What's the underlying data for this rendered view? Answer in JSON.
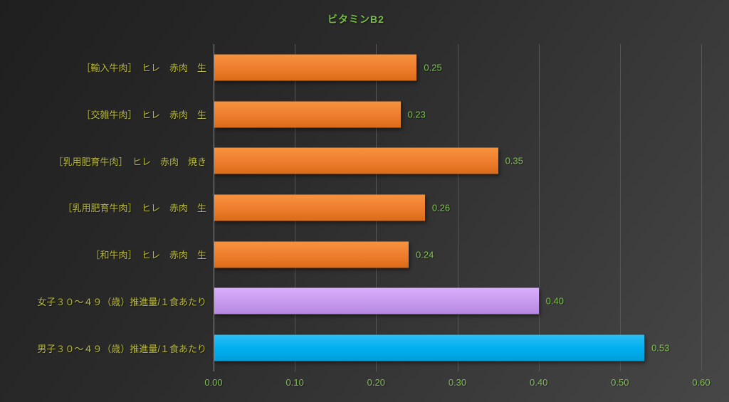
{
  "colors": {
    "background_dark": "#1f1f1f",
    "background_light": "#474747",
    "title_green": "#76bd45",
    "value_label_green": "#7ec24f",
    "category_label_olive": "#b9b93b",
    "axis_line_gray": "#8c8c8c",
    "gridline_gray": "#565656",
    "bar_orange": "#ee7d2d",
    "bar_purple": "#c89aef",
    "bar_blue": "#00b0f0"
  },
  "chart_data": {
    "type": "bar",
    "orientation": "horizontal",
    "title": "ビタミンB2",
    "categories": [
      "［輸入牛肉］　ヒレ　赤肉　生",
      "［交雑牛肉］　ヒレ　赤肉　生",
      "［乳用肥育牛肉］　ヒレ　赤肉　焼き",
      "［乳用肥育牛肉］　ヒレ　赤肉　生",
      "［和牛肉］　ヒレ　赤肉　生",
      "女子３０～４９（歳）推進量/１食あたり",
      "男子３０～４９（歳）推進量/１食あたり"
    ],
    "values": [
      0.25,
      0.23,
      0.35,
      0.26,
      0.24,
      0.4,
      0.53
    ],
    "value_labels": [
      "0.25",
      "0.23",
      "0.35",
      "0.26",
      "0.24",
      "0.40",
      "0.53"
    ],
    "bar_colors": [
      {
        "top": "#f7933f",
        "mid": "#ee7d2d",
        "bottom": "#db6b18"
      },
      {
        "top": "#f7933f",
        "mid": "#ee7d2d",
        "bottom": "#db6b18"
      },
      {
        "top": "#f7933f",
        "mid": "#ee7d2d",
        "bottom": "#db6b18"
      },
      {
        "top": "#f7933f",
        "mid": "#ee7d2d",
        "bottom": "#db6b18"
      },
      {
        "top": "#f7933f",
        "mid": "#ee7d2d",
        "bottom": "#db6b18"
      },
      {
        "top": "#d9aefb",
        "mid": "#c89aef",
        "bottom": "#b687de"
      },
      {
        "top": "#2cbef4",
        "mid": "#00b0f0",
        "bottom": "#009ed8"
      }
    ],
    "xlabel": "",
    "ylabel": "",
    "xlim": [
      0,
      0.6
    ],
    "x_ticks": [
      "0.00",
      "0.10",
      "0.20",
      "0.30",
      "0.40",
      "0.50",
      "0.60"
    ],
    "x_tick_values": [
      0,
      0.1,
      0.2,
      0.3,
      0.4,
      0.5,
      0.6
    ],
    "grid": true,
    "legend": false
  }
}
